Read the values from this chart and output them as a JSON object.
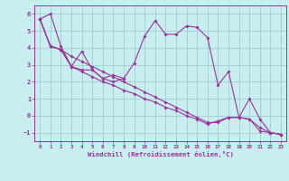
{
  "xlabel": "Windchill (Refroidissement éolien,°C)",
  "bg_color": "#c8eef0",
  "line_color": "#993399",
  "grid_color": "#a0ccd0",
  "xlim": [
    -0.5,
    23.5
  ],
  "ylim": [
    -1.5,
    6.5
  ],
  "yticks": [
    -1,
    0,
    1,
    2,
    3,
    4,
    5,
    6
  ],
  "xticks": [
    0,
    1,
    2,
    3,
    4,
    5,
    6,
    7,
    8,
    9,
    10,
    11,
    12,
    13,
    14,
    15,
    16,
    17,
    18,
    19,
    20,
    21,
    22,
    23
  ],
  "series": [
    [
      5.7,
      6.0,
      4.1,
      2.9,
      3.8,
      2.7,
      2.2,
      2.4,
      2.2,
      3.1,
      4.7,
      5.6,
      4.8,
      4.8,
      5.3,
      5.2,
      4.6,
      1.8,
      2.6,
      -0.1,
      1.0,
      -0.2,
      -1.0,
      -1.1
    ],
    [
      5.7,
      4.1,
      3.9,
      2.9,
      2.7,
      2.7,
      2.2,
      2.0,
      2.2,
      null,
      null,
      null,
      null,
      null,
      null,
      null,
      null,
      null,
      null,
      null,
      null,
      null,
      null,
      null
    ],
    [
      5.7,
      4.1,
      3.9,
      3.5,
      3.2,
      2.9,
      2.6,
      2.3,
      2.0,
      1.7,
      1.4,
      1.1,
      0.8,
      0.5,
      0.2,
      -0.1,
      -0.4,
      -0.4,
      -0.1,
      -0.1,
      -0.2,
      -0.9,
      -1.0,
      -1.1
    ],
    [
      5.7,
      4.1,
      3.9,
      2.9,
      2.6,
      2.3,
      2.0,
      1.8,
      1.5,
      1.3,
      1.0,
      0.8,
      0.5,
      0.3,
      0.0,
      -0.2,
      -0.5,
      -0.3,
      -0.1,
      -0.1,
      -0.2,
      -0.7,
      -1.0,
      -1.1
    ]
  ]
}
